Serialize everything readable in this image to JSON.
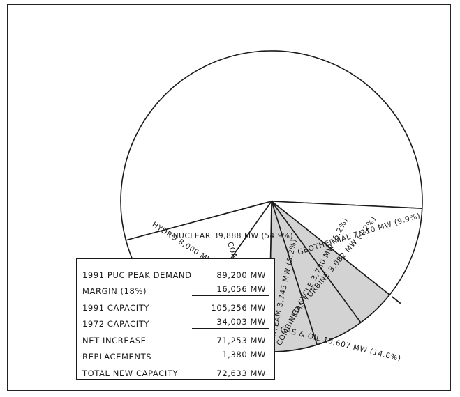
{
  "chart_data": {
    "type": "pie",
    "total_mw": 72633,
    "slices": [
      {
        "name": "NUCLEAR",
        "value": 39888,
        "label": "NUCLEAR 39,888 MW (54.9%)",
        "color": "#ffffff"
      },
      {
        "name": "GEOTHERMAL",
        "value": 7210,
        "label": "GEOTHERMAL 7,210 MW (9.9%)",
        "color": "#ffffff"
      },
      {
        "name": "GAS TURBINE",
        "value": 3082,
        "label": "GAS TURBINE 3,082 MW (4.2%)",
        "color": "#d3d3d3"
      },
      {
        "name": "COMBINED CYCLE",
        "value": 3780,
        "label": "COMBINED CYCLE 3,780 MW (5.2%)",
        "color": "#d3d3d3"
      },
      {
        "name": "STEAM",
        "value": 3745,
        "label": "STEAM 3,745 MW (5.2%)",
        "color": "#d3d3d3"
      },
      {
        "name": "COAL",
        "value": 6928,
        "label": "COAL 6,928 MW (9.6%)",
        "color": "#ffffff"
      },
      {
        "name": "HYDRO",
        "value": 8000,
        "label": "HYDRO 8,000 MW (11.0%)",
        "color": "#ffffff"
      }
    ],
    "group_annotation": {
      "text": "GAS & OIL 10,607 MW",
      "percent": "(14.6%)",
      "members": [
        "STEAM",
        "COMBINED CYCLE",
        "GAS TURBINE"
      ]
    }
  },
  "summary_table": {
    "rows": [
      {
        "label": "1991 PUC PEAK DEMAND",
        "value": "89,200 MW",
        "underline": false
      },
      {
        "label": "MARGIN (18%)",
        "value": "16,056 MW",
        "underline": true
      },
      {
        "label": "1991 CAPACITY",
        "value": "105,256 MW",
        "underline": false
      },
      {
        "label": "1972 CAPACITY",
        "value": "34,003 MW",
        "underline": true
      },
      {
        "label": "NET INCREASE",
        "value": "71,253 MW",
        "underline": false
      },
      {
        "label": "REPLACEMENTS",
        "value": "1,380 MW",
        "underline": true
      },
      {
        "label": "TOTAL NEW CAPACITY",
        "value": "72,633 MW",
        "underline": false
      }
    ]
  }
}
